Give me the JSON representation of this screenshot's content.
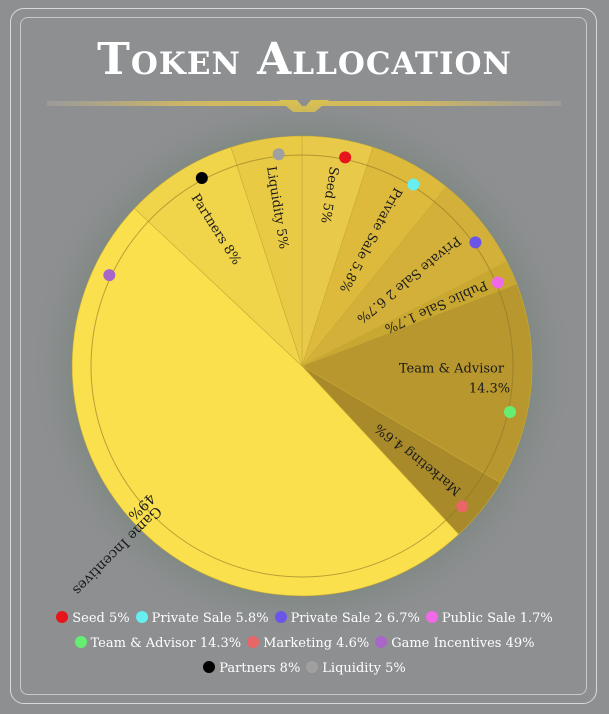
{
  "header": {
    "title": "Token Allocation"
  },
  "chart_data": {
    "type": "pie",
    "title": "Token Allocation",
    "slices": [
      {
        "label": "Seed",
        "value": 5,
        "display": "5%",
        "legend": "Seed 5%",
        "dot_color": "#e8141c",
        "fill": "#e9c94a"
      },
      {
        "label": "Private Sale",
        "value": 5.8,
        "display": "5.8%",
        "legend": "Private Sale 5.8%",
        "dot_color": "#66eef0",
        "fill": "#ddba3c"
      },
      {
        "label": "Private Sale 2",
        "value": 6.7,
        "display": "6.7%",
        "legend": "Private Sale 2 6.7%",
        "dot_color": "#6a55e8",
        "fill": "#d3b03a"
      },
      {
        "label": "Public Sale",
        "value": 1.7,
        "display": "1.7%",
        "legend": "Public Sale 1.7%",
        "dot_color": "#f06ae8",
        "fill": "#c9a832"
      },
      {
        "label": "Team & Advisor",
        "value": 14.3,
        "display": "14.3%",
        "legend": "Team & Advisor 14.3%",
        "dot_color": "#66ee72",
        "fill": "#b8982e"
      },
      {
        "label": "Marketing",
        "value": 4.6,
        "display": "4.6%",
        "legend": "Marketing 4.6%",
        "dot_color": "#e86666",
        "fill": "#a88a2a"
      },
      {
        "label": "Game Incentives",
        "value": 49,
        "display": "49%",
        "legend": "Game Incentives 49%",
        "dot_color": "#a866c8",
        "fill": "#fbe04e"
      },
      {
        "label": "Partners",
        "value": 8,
        "display": "8%",
        "legend": "Partners 8%",
        "dot_color": "#000000",
        "fill": "#f0d44a"
      },
      {
        "label": "Liquidity",
        "value": 5,
        "display": "5%",
        "legend": "Liquidity 5%",
        "dot_color": "#a0a0a0",
        "fill": "#e9ca44"
      }
    ],
    "legend_rows": [
      [
        0,
        1,
        2,
        3
      ],
      [
        4,
        5,
        6
      ],
      [
        7,
        8
      ]
    ],
    "legend_position": "bottom"
  }
}
